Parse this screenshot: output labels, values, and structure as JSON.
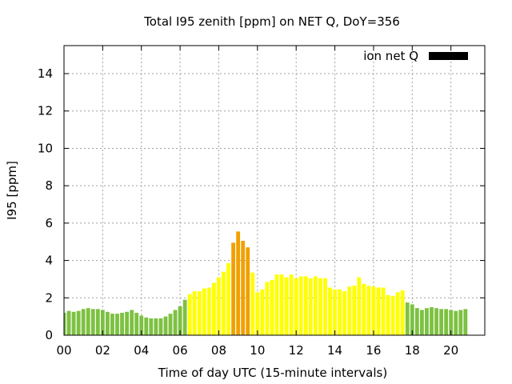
{
  "chart_data": {
    "type": "bar",
    "title": "Total I95 zenith [ppm] on NET Q, DoY=356",
    "xlabel": "Time of day UTC (15-minute intervals)",
    "ylabel": "I95 [ppm]",
    "legend": {
      "label": "ion net Q",
      "color": "#000000",
      "placement": "top-right"
    },
    "grid": true,
    "xlim": [
      0,
      21.75
    ],
    "ylim": [
      0,
      15.5
    ],
    "x_ticks": [
      0,
      2,
      4,
      6,
      8,
      10,
      12,
      14,
      16,
      18,
      20
    ],
    "x_tick_labels": [
      "00",
      "02",
      "04",
      "06",
      "08",
      "10",
      "12",
      "14",
      "16",
      "18",
      "20"
    ],
    "y_ticks": [
      0,
      2,
      4,
      6,
      8,
      10,
      12,
      14
    ],
    "y_tick_labels": [
      "0",
      "2",
      "4",
      "6",
      "8",
      "10",
      "12",
      "14"
    ],
    "bar_width_hours": 0.2,
    "x_start_hours": 0,
    "x_step_hours": 0.25,
    "colors": {
      "low": "#7dc142",
      "moderate": "#ffff00",
      "high": "#f0a000"
    },
    "values": [
      1.2,
      1.3,
      1.25,
      1.3,
      1.4,
      1.45,
      1.4,
      1.4,
      1.35,
      1.25,
      1.15,
      1.15,
      1.2,
      1.25,
      1.35,
      1.2,
      1.05,
      0.95,
      0.9,
      0.9,
      0.9,
      1.0,
      1.15,
      1.35,
      1.55,
      1.9,
      2.2,
      2.35,
      2.35,
      2.5,
      2.55,
      2.8,
      3.1,
      3.4,
      3.85,
      4.95,
      5.55,
      5.05,
      4.7,
      3.35,
      2.3,
      2.45,
      2.85,
      2.95,
      3.25,
      3.25,
      3.1,
      3.25,
      3.05,
      3.15,
      3.15,
      3.05,
      3.15,
      3.05,
      3.05,
      2.55,
      2.45,
      2.45,
      2.35,
      2.6,
      2.65,
      3.1,
      2.75,
      2.65,
      2.6,
      2.55,
      2.55,
      2.15,
      2.1,
      2.3,
      2.4,
      1.75,
      1.65,
      1.45,
      1.35,
      1.45,
      1.5,
      1.45,
      1.4,
      1.4,
      1.35,
      1.3,
      1.35,
      1.4
    ],
    "bar_levels": [
      "low",
      "low",
      "low",
      "low",
      "low",
      "low",
      "low",
      "low",
      "low",
      "low",
      "low",
      "low",
      "low",
      "low",
      "low",
      "low",
      "low",
      "low",
      "low",
      "low",
      "low",
      "low",
      "low",
      "low",
      "low",
      "low",
      "moderate",
      "moderate",
      "moderate",
      "moderate",
      "moderate",
      "moderate",
      "moderate",
      "moderate",
      "moderate",
      "high",
      "high",
      "high",
      "high",
      "moderate",
      "moderate",
      "moderate",
      "moderate",
      "moderate",
      "moderate",
      "moderate",
      "moderate",
      "moderate",
      "moderate",
      "moderate",
      "moderate",
      "moderate",
      "moderate",
      "moderate",
      "moderate",
      "moderate",
      "moderate",
      "moderate",
      "moderate",
      "moderate",
      "moderate",
      "moderate",
      "moderate",
      "moderate",
      "moderate",
      "moderate",
      "moderate",
      "moderate",
      "moderate",
      "moderate",
      "moderate",
      "low",
      "low",
      "low",
      "low",
      "low",
      "low",
      "low",
      "low",
      "low",
      "low",
      "low",
      "low",
      "low"
    ]
  }
}
